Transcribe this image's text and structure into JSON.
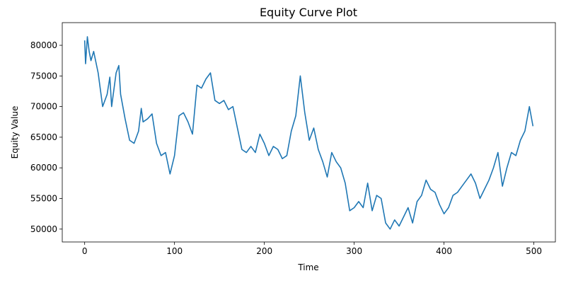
{
  "chart_data": {
    "type": "line",
    "title": "Equity Curve Plot",
    "x_label": "Time",
    "y_label": "Equity Value",
    "x": [
      0,
      1,
      3,
      5,
      7,
      10,
      15,
      20,
      25,
      28,
      30,
      35,
      38,
      40,
      45,
      50,
      55,
      60,
      63,
      65,
      70,
      75,
      80,
      85,
      90,
      95,
      100,
      105,
      110,
      115,
      120,
      125,
      130,
      135,
      140,
      145,
      150,
      155,
      160,
      165,
      170,
      175,
      180,
      185,
      190,
      195,
      200,
      205,
      210,
      215,
      220,
      225,
      230,
      235,
      240,
      245,
      250,
      255,
      260,
      265,
      270,
      275,
      280,
      285,
      290,
      295,
      300,
      305,
      310,
      315,
      320,
      325,
      330,
      335,
      340,
      345,
      350,
      355,
      360,
      365,
      370,
      375,
      380,
      385,
      390,
      395,
      400,
      405,
      410,
      415,
      420,
      425,
      430,
      435,
      440,
      445,
      450,
      455,
      460,
      465,
      470,
      475,
      480,
      485,
      490,
      495,
      499
    ],
    "series": [
      {
        "name": "Equity",
        "color": "#1f77b4",
        "values": [
          80800,
          77000,
          81400,
          79000,
          77500,
          79000,
          75500,
          70000,
          72000,
          74800,
          70000,
          75500,
          76700,
          72000,
          68000,
          64500,
          64000,
          66000,
          69700,
          67500,
          68000,
          68800,
          64000,
          62000,
          62500,
          59000,
          62000,
          68500,
          69000,
          67500,
          65500,
          73500,
          73000,
          74500,
          75500,
          71000,
          70500,
          71000,
          69500,
          70000,
          66500,
          63000,
          62500,
          63500,
          62500,
          65500,
          64000,
          62000,
          63500,
          63000,
          61500,
          62000,
          66000,
          68500,
          75000,
          69000,
          64500,
          66500,
          63000,
          61000,
          58500,
          62500,
          61000,
          60000,
          57500,
          53000,
          53500,
          54500,
          53500,
          57500,
          53000,
          55500,
          55000,
          51000,
          50000,
          51500,
          50500,
          52000,
          53500,
          51000,
          54500,
          55500,
          58000,
          56500,
          56000,
          54000,
          52500,
          53500,
          55500,
          56000,
          57000,
          58000,
          59000,
          57500,
          55000,
          56500,
          58000,
          60000,
          62500,
          57000,
          60000,
          62500,
          62000,
          64500,
          66000,
          70000,
          66800
        ]
      }
    ],
    "xlim": [
      -24.95,
      523.95
    ],
    "xticks": [
      0,
      100,
      200,
      300,
      400,
      500
    ],
    "ylim": [
      47900,
      83700
    ],
    "yticks": [
      50000,
      55000,
      60000,
      65000,
      70000,
      75000,
      80000
    ]
  }
}
